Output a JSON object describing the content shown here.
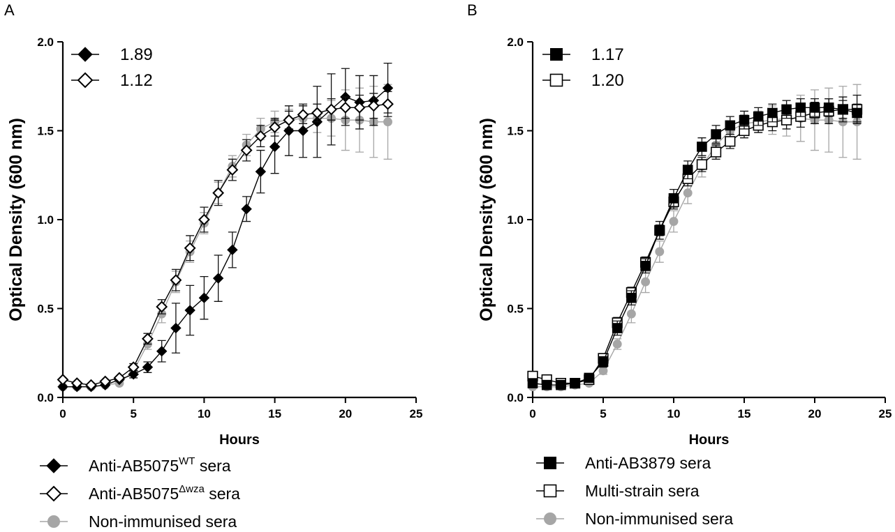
{
  "panels": [
    {
      "panel_label": "A",
      "title": "",
      "xlabel": "Hours",
      "ylabel": "Optical Density (600 nm)",
      "xlim": [
        0,
        25
      ],
      "ylim": [
        0,
        2.0
      ],
      "xticks": [
        0,
        5,
        10,
        15,
        20,
        25
      ],
      "yticks": [
        "0.0",
        "0.5",
        "1.0",
        "1.5",
        "2.0"
      ],
      "inset_legend": [
        {
          "marker": "diamond-filled",
          "value": "1.89"
        },
        {
          "marker": "diamond-open",
          "value": "1.12"
        }
      ],
      "legend": [
        {
          "marker": "diamond-filled",
          "label_main": "Anti-AB5075",
          "label_sup": "WT",
          "label_tail": " sera"
        },
        {
          "marker": "diamond-open",
          "label_main": "Anti-AB5075",
          "label_sup": "Δwza",
          "label_tail": " sera"
        },
        {
          "marker": "circle-gray",
          "label_main": "Non-immunised sera",
          "label_sup": "",
          "label_tail": ""
        }
      ],
      "series": [
        {
          "name": "Non-immunised sera",
          "marker": "circle-gray",
          "x": [
            0,
            1,
            2,
            3,
            4,
            5,
            6,
            7,
            8,
            9,
            10,
            11,
            12,
            13,
            14,
            15,
            16,
            17,
            18,
            19,
            20,
            21,
            22,
            23
          ],
          "y": [
            0.06,
            0.06,
            0.06,
            0.07,
            0.08,
            0.15,
            0.3,
            0.47,
            0.65,
            0.82,
            0.98,
            1.15,
            1.3,
            1.42,
            1.51,
            1.55,
            1.56,
            1.57,
            1.57,
            1.57,
            1.56,
            1.56,
            1.55,
            1.55
          ],
          "err": [
            0.01,
            0.01,
            0.01,
            0.01,
            0.01,
            0.02,
            0.03,
            0.05,
            0.06,
            0.06,
            0.06,
            0.06,
            0.06,
            0.06,
            0.06,
            0.06,
            0.06,
            0.07,
            0.08,
            0.1,
            0.17,
            0.18,
            0.2,
            0.21
          ]
        },
        {
          "name": "Anti-AB5075 WT sera",
          "marker": "diamond-filled",
          "x": [
            0,
            1,
            2,
            3,
            4,
            5,
            6,
            7,
            8,
            9,
            10,
            11,
            12,
            13,
            14,
            15,
            16,
            17,
            18,
            19,
            20,
            21,
            22,
            23
          ],
          "y": [
            0.06,
            0.06,
            0.06,
            0.07,
            0.1,
            0.13,
            0.17,
            0.26,
            0.39,
            0.49,
            0.56,
            0.67,
            0.83,
            1.06,
            1.27,
            1.41,
            1.5,
            1.5,
            1.55,
            1.62,
            1.69,
            1.66,
            1.67,
            1.74
          ],
          "err": [
            0.01,
            0.01,
            0.01,
            0.01,
            0.01,
            0.02,
            0.03,
            0.06,
            0.14,
            0.14,
            0.12,
            0.13,
            0.1,
            0.07,
            0.12,
            0.15,
            0.14,
            0.15,
            0.2,
            0.2,
            0.16,
            0.15,
            0.14,
            0.14
          ]
        },
        {
          "name": "Anti-AB5075 Δwza sera",
          "marker": "diamond-open",
          "x": [
            0,
            1,
            2,
            3,
            4,
            5,
            6,
            7,
            8,
            9,
            10,
            11,
            12,
            13,
            14,
            15,
            16,
            17,
            18,
            19,
            20,
            21,
            22,
            23
          ],
          "y": [
            0.1,
            0.08,
            0.07,
            0.09,
            0.11,
            0.17,
            0.33,
            0.51,
            0.66,
            0.84,
            1.0,
            1.15,
            1.28,
            1.39,
            1.47,
            1.52,
            1.56,
            1.59,
            1.6,
            1.62,
            1.63,
            1.63,
            1.64,
            1.65
          ],
          "err": [
            0.01,
            0.01,
            0.01,
            0.01,
            0.01,
            0.02,
            0.03,
            0.04,
            0.06,
            0.07,
            0.07,
            0.07,
            0.06,
            0.06,
            0.06,
            0.05,
            0.05,
            0.05,
            0.05,
            0.06,
            0.06,
            0.07,
            0.07,
            0.07
          ]
        }
      ]
    },
    {
      "panel_label": "B",
      "title": "",
      "xlabel": "Hours",
      "ylabel": "Optical Density (600 nm)",
      "xlim": [
        0,
        25
      ],
      "ylim": [
        0,
        2.0
      ],
      "xticks": [
        0,
        5,
        10,
        15,
        20,
        25
      ],
      "yticks": [
        "0.0",
        "0.5",
        "1.0",
        "1.5",
        "2.0"
      ],
      "inset_legend": [
        {
          "marker": "square-filled",
          "value": "1.17"
        },
        {
          "marker": "square-open",
          "value": "1.20"
        }
      ],
      "legend": [
        {
          "marker": "square-filled",
          "label_main": "Anti-AB3879 sera",
          "label_sup": "",
          "label_tail": ""
        },
        {
          "marker": "square-open",
          "label_main": "Multi-strain sera",
          "label_sup": "",
          "label_tail": ""
        },
        {
          "marker": "circle-gray",
          "label_main": "Non-immunised sera",
          "label_sup": "",
          "label_tail": ""
        }
      ],
      "series": [
        {
          "name": "Non-immunised sera",
          "marker": "circle-gray",
          "x": [
            0,
            1,
            2,
            3,
            4,
            5,
            6,
            7,
            8,
            9,
            10,
            11,
            12,
            13,
            14,
            15,
            16,
            17,
            18,
            19,
            20,
            21,
            22,
            23
          ],
          "y": [
            0.06,
            0.06,
            0.06,
            0.07,
            0.08,
            0.15,
            0.3,
            0.47,
            0.65,
            0.82,
            0.99,
            1.15,
            1.3,
            1.42,
            1.5,
            1.54,
            1.55,
            1.56,
            1.57,
            1.57,
            1.56,
            1.56,
            1.55,
            1.55
          ],
          "err": [
            0.01,
            0.01,
            0.01,
            0.01,
            0.01,
            0.02,
            0.03,
            0.05,
            0.06,
            0.06,
            0.06,
            0.06,
            0.06,
            0.05,
            0.05,
            0.05,
            0.06,
            0.08,
            0.1,
            0.13,
            0.17,
            0.18,
            0.2,
            0.21
          ]
        },
        {
          "name": "Multi-strain sera",
          "marker": "square-open",
          "x": [
            0,
            1,
            2,
            3,
            4,
            5,
            6,
            7,
            8,
            9,
            10,
            11,
            12,
            13,
            14,
            15,
            16,
            17,
            18,
            19,
            20,
            21,
            22,
            23
          ],
          "y": [
            0.12,
            0.1,
            0.08,
            0.08,
            0.1,
            0.22,
            0.42,
            0.59,
            0.76,
            0.94,
            1.1,
            1.23,
            1.31,
            1.38,
            1.44,
            1.5,
            1.53,
            1.55,
            1.56,
            1.58,
            1.6,
            1.61,
            1.62,
            1.62
          ],
          "err": [
            0.01,
            0.01,
            0.01,
            0.01,
            0.01,
            0.02,
            0.03,
            0.03,
            0.03,
            0.03,
            0.04,
            0.04,
            0.04,
            0.04,
            0.04,
            0.04,
            0.04,
            0.05,
            0.05,
            0.06,
            0.06,
            0.07,
            0.07,
            0.08
          ]
        },
        {
          "name": "Anti-AB3879 sera",
          "marker": "square-filled",
          "x": [
            0,
            1,
            2,
            3,
            4,
            5,
            6,
            7,
            8,
            9,
            10,
            11,
            12,
            13,
            14,
            15,
            16,
            17,
            18,
            19,
            20,
            21,
            22,
            23
          ],
          "y": [
            0.08,
            0.07,
            0.07,
            0.08,
            0.11,
            0.2,
            0.39,
            0.56,
            0.74,
            0.94,
            1.12,
            1.28,
            1.41,
            1.48,
            1.53,
            1.56,
            1.58,
            1.6,
            1.62,
            1.63,
            1.63,
            1.63,
            1.62,
            1.6
          ],
          "err": [
            0.01,
            0.01,
            0.01,
            0.01,
            0.02,
            0.03,
            0.04,
            0.04,
            0.04,
            0.05,
            0.05,
            0.05,
            0.05,
            0.05,
            0.05,
            0.05,
            0.05,
            0.05,
            0.05,
            0.05,
            0.05,
            0.05,
            0.05,
            0.05
          ]
        }
      ]
    }
  ]
}
